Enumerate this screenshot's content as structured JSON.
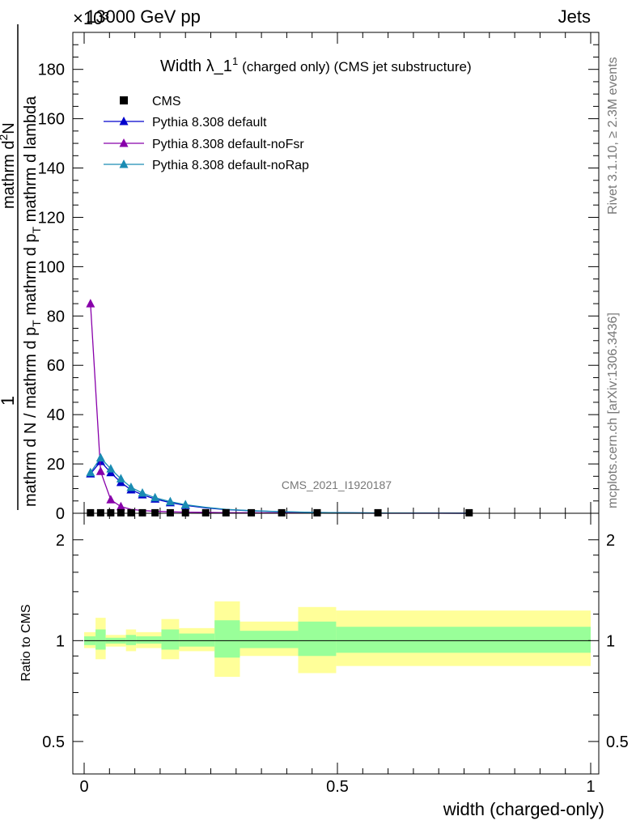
{
  "header": {
    "energy": "13000 GeV pp",
    "process": "Jets",
    "exponent": "×10³"
  },
  "side_labels": {
    "rivet": "Rivet 3.1.10, ≥ 2.3M events",
    "mcplots": "mcplots.cern.ch [arXiv:1306.3436]"
  },
  "watermark": "CMS_2021_I1920187",
  "chart_data": [
    {
      "type": "line",
      "title_main": "Width λ_1",
      "title_sup": "1",
      "title_rest": "(charged only) (CMS jet substructure)",
      "xlabel": "width (charged-only)",
      "ylabel": {
        "numerator": "1",
        "line1": "mathrm d N / mathrm d p",
        "sub1": "T",
        "line1b": " mathrm d p",
        "sub2": "T",
        "line1c": " mathrm d lambda",
        "line2": "mathrm d",
        "sup2": "2",
        "line2b": "N"
      },
      "xlim": [
        -0.03,
        1.03
      ],
      "ylim": [
        0,
        195
      ],
      "y_multiplier": "1e3",
      "yticks": [
        0,
        20,
        40,
        60,
        80,
        100,
        120,
        140,
        160,
        180
      ],
      "xticks": [
        "0",
        "0.5",
        "1"
      ],
      "legend": [
        "CMS",
        "Pythia 8.308 default",
        "Pythia 8.308 default-noFsr",
        "Pythia 8.308 default-noRap"
      ],
      "legend_position": "top-left",
      "colors": {
        "default": "#0000cc",
        "noFsr": "#8800aa",
        "noRap": "#1a8cb3",
        "data": "#000000"
      },
      "x": [
        0.0125,
        0.0325,
        0.0525,
        0.0725,
        0.0925,
        0.115,
        0.14,
        0.17,
        0.2,
        0.24,
        0.28,
        0.33,
        0.39,
        0.46,
        0.58,
        0.76
      ],
      "series": [
        {
          "name": "CMS",
          "values": [
            0.2,
            0.2,
            0.2,
            0.2,
            0.2,
            0.2,
            0.2,
            0.2,
            0.2,
            0.2,
            0.2,
            0.2,
            0.2,
            0.2,
            0.2,
            0.2
          ]
        },
        {
          "name": "Pythia 8.308 default",
          "values": [
            16,
            21,
            16.5,
            12.5,
            9.5,
            7.5,
            5.8,
            4.3,
            3.2,
            2.2,
            1.5,
            1.0,
            0.6,
            0.3,
            0.1,
            0.02
          ]
        },
        {
          "name": "Pythia 8.308 default-noFsr",
          "values": [
            85,
            17,
            5.5,
            2.7,
            1.6,
            1.1,
            0.8,
            0.6,
            0.45,
            0.35,
            0.25,
            0.18,
            0.12,
            0.06,
            0.02,
            0.01
          ]
        },
        {
          "name": "Pythia 8.308 default-noRap",
          "values": [
            16.5,
            22.5,
            18,
            14,
            10.5,
            8.2,
            6.3,
            4.7,
            3.5,
            2.4,
            1.6,
            1.05,
            0.65,
            0.32,
            0.1,
            0.02
          ]
        }
      ]
    },
    {
      "type": "area",
      "ylabel": "Ratio to CMS",
      "xlim": [
        -0.03,
        1.03
      ],
      "ylim": [
        0.4,
        2.4
      ],
      "log_scale_y": true,
      "yticks": [
        "0.5",
        "1",
        "2"
      ],
      "bands_colors": {
        "outer": "#ffff99",
        "inner": "#99ff99",
        "line": "#000000"
      },
      "bins": [
        {
          "lo": 0.0,
          "hi": 0.0225,
          "outer": [
            0.95,
            1.06
          ],
          "inner": [
            0.97,
            1.03
          ]
        },
        {
          "lo": 0.0225,
          "hi": 0.0425,
          "outer": [
            0.88,
            1.17
          ],
          "inner": [
            0.94,
            1.08
          ]
        },
        {
          "lo": 0.0425,
          "hi": 0.0825,
          "outer": [
            0.96,
            1.04
          ],
          "inner": [
            0.98,
            1.02
          ]
        },
        {
          "lo": 0.0825,
          "hi": 0.1025,
          "outer": [
            0.93,
            1.08
          ],
          "inner": [
            0.97,
            1.04
          ]
        },
        {
          "lo": 0.1025,
          "hi": 0.1525,
          "outer": [
            0.95,
            1.06
          ],
          "inner": [
            0.98,
            1.03
          ]
        },
        {
          "lo": 0.1525,
          "hi": 0.1875,
          "outer": [
            0.88,
            1.16
          ],
          "inner": [
            0.94,
            1.08
          ]
        },
        {
          "lo": 0.1875,
          "hi": 0.2575,
          "outer": [
            0.93,
            1.09
          ],
          "inner": [
            0.96,
            1.05
          ]
        },
        {
          "lo": 0.2575,
          "hi": 0.3075,
          "outer": [
            0.78,
            1.31
          ],
          "inner": [
            0.89,
            1.15
          ]
        },
        {
          "lo": 0.3075,
          "hi": 0.4225,
          "outer": [
            0.9,
            1.14
          ],
          "inner": [
            0.95,
            1.07
          ]
        },
        {
          "lo": 0.4225,
          "hi": 0.4975,
          "outer": [
            0.8,
            1.26
          ],
          "inner": [
            0.9,
            1.14
          ]
        },
        {
          "lo": 0.4975,
          "hi": 1.0,
          "outer": [
            0.84,
            1.23
          ],
          "inner": [
            0.92,
            1.1
          ]
        }
      ]
    }
  ]
}
